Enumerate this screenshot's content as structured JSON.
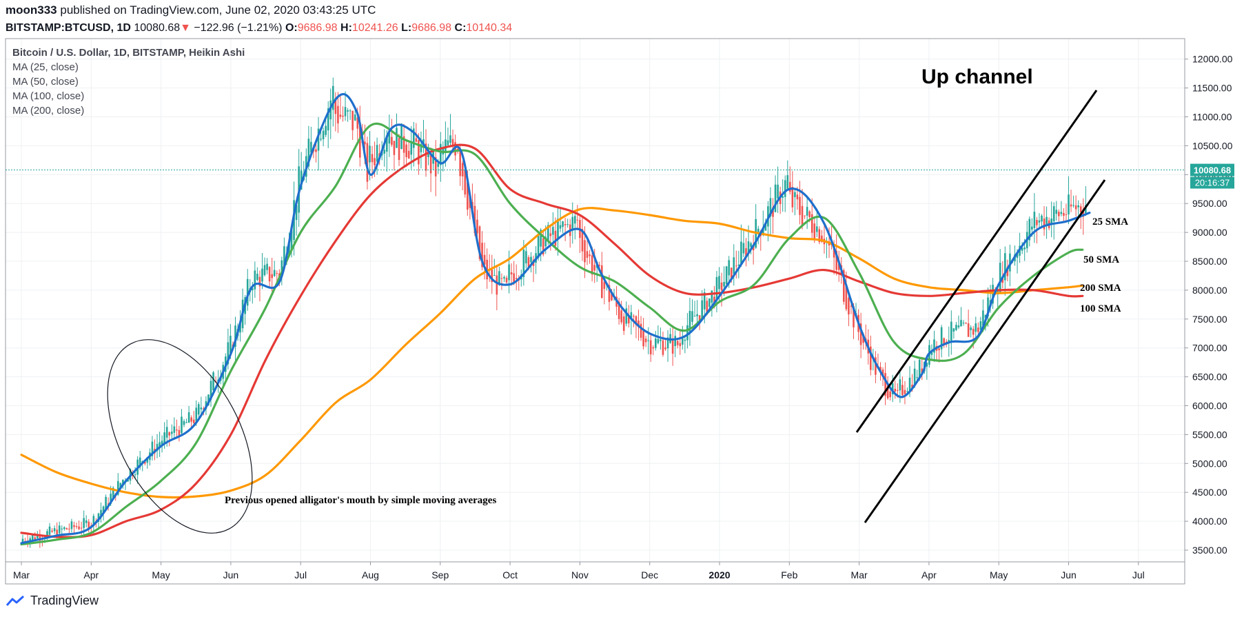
{
  "header": {
    "publisher": "moon333",
    "published_text": "published on TradingView.com, June 02, 2020 03:43:25 UTC",
    "symbol": "BITSTAMP:BTCUSD, 1D",
    "last": "10080.68",
    "change_arrow": "▼",
    "change": "−122.96 (−1.21%)",
    "o_label": "O:",
    "o_value": "9686.98",
    "h_label": "H:",
    "h_value": "10241.26",
    "l_label": "L:",
    "l_value": "9686.98",
    "c_label": "C:",
    "c_value": "10140.34"
  },
  "legend": {
    "title": "Bitcoin / U.S. Dollar, 1D, BITSTAMP, Heikin Ashi",
    "ma_lines": [
      "MA (25, close)",
      "MA (50, close)",
      "MA (100, close)",
      "MA (200, close)"
    ]
  },
  "price_badge": {
    "price": "10080.68",
    "countdown": "20:16:37"
  },
  "footer": {
    "brand": "TradingView"
  },
  "chart_data": {
    "type": "line",
    "title": "Bitcoin / U.S. Dollar, 1D, BITSTAMP, Heikin Ashi",
    "xlabel": "",
    "ylabel": "",
    "x_tick_labels": [
      "Mar",
      "Apr",
      "May",
      "Jun",
      "Jul",
      "Aug",
      "Sep",
      "Oct",
      "Nov",
      "Dec",
      "2020",
      "Feb",
      "Mar",
      "Apr",
      "May",
      "Jun",
      "Jul"
    ],
    "y_tick_labels": [
      "3500.00",
      "4000.00",
      "4500.00",
      "5000.00",
      "5500.00",
      "6000.00",
      "6500.00",
      "7000.00",
      "7500.00",
      "8000.00",
      "8500.00",
      "9000.00",
      "9500.00",
      "10000.00",
      "10500.00",
      "11000.00",
      "11500.00",
      "12000.00"
    ],
    "ylim": [
      3350,
      12600
    ],
    "grid": true,
    "candles_overlay": "heikin-ashi",
    "last_price": 10080.68,
    "series": [
      {
        "name": "MA (25, close)",
        "color": "#1e6fcc",
        "x": [
          0,
          0.5,
          1,
          1.5,
          2,
          2.5,
          3,
          3.3,
          3.7,
          4,
          4.5,
          4.8,
          5,
          5.3,
          5.6,
          6,
          6.3,
          6.6,
          7,
          7.5,
          8,
          8.3,
          8.6,
          9,
          9.5,
          10,
          10.5,
          11,
          11.5,
          12,
          12.3,
          12.6,
          12.9,
          13,
          13.3,
          13.7,
          14,
          14.5,
          15,
          15.3
        ],
        "y": [
          3620,
          3750,
          3900,
          4700,
          5300,
          5700,
          6900,
          8050,
          8150,
          9800,
          11300,
          11100,
          10000,
          10800,
          10750,
          10200,
          10400,
          8500,
          8100,
          8700,
          9050,
          8300,
          7700,
          7250,
          7200,
          7900,
          8800,
          9750,
          9150,
          7400,
          6600,
          6150,
          6550,
          6900,
          7100,
          7200,
          8100,
          9000,
          9200,
          9340
        ]
      },
      {
        "name": "MA (50, close)",
        "color": "#4caf50",
        "x": [
          0,
          0.5,
          1,
          1.5,
          2,
          2.5,
          3,
          3.5,
          4,
          4.5,
          5,
          5.5,
          6,
          6.5,
          7,
          7.5,
          8,
          8.5,
          9,
          9.5,
          10,
          10.5,
          11,
          11.5,
          12,
          12.5,
          13,
          13.5,
          14,
          14.5,
          15,
          15.2
        ],
        "y": [
          3600,
          3680,
          3800,
          4250,
          4700,
          5350,
          6600,
          7700,
          9000,
          9800,
          10850,
          10600,
          10400,
          10350,
          9500,
          8900,
          8400,
          8150,
          7700,
          7300,
          7800,
          8100,
          8900,
          9250,
          8300,
          7100,
          6800,
          6900,
          7700,
          8250,
          8650,
          8700
        ]
      },
      {
        "name": "MA (100, close)",
        "color": "#e53935",
        "x": [
          0,
          0.5,
          1,
          1.5,
          2,
          2.5,
          3,
          3.5,
          4,
          4.5,
          5,
          5.5,
          6,
          6.5,
          7,
          7.5,
          8,
          8.5,
          9,
          9.5,
          10,
          10.5,
          11,
          11.5,
          12,
          12.5,
          13,
          13.5,
          14,
          14.5,
          15,
          15.2
        ],
        "y": [
          3800,
          3730,
          3760,
          4000,
          4200,
          4650,
          5500,
          6800,
          7900,
          8850,
          9650,
          10150,
          10450,
          10450,
          9750,
          9500,
          9300,
          8800,
          8250,
          7950,
          7950,
          8050,
          8200,
          8350,
          8150,
          7950,
          7900,
          7950,
          8000,
          8000,
          7900,
          7900
        ]
      },
      {
        "name": "MA (200, close)",
        "color": "#ff9800",
        "x": [
          0,
          0.5,
          1,
          1.5,
          2,
          2.5,
          3,
          3.5,
          4,
          4.5,
          5,
          5.5,
          6,
          6.5,
          7,
          7.5,
          8,
          8.5,
          9,
          9.5,
          10,
          10.5,
          11,
          11.5,
          12,
          12.5,
          13,
          13.5,
          14,
          14.5,
          15,
          15.2
        ],
        "y": [
          5150,
          4850,
          4650,
          4500,
          4420,
          4430,
          4530,
          4800,
          5400,
          6050,
          6450,
          7050,
          7600,
          8200,
          8550,
          9050,
          9400,
          9380,
          9300,
          9200,
          9150,
          9000,
          8900,
          8850,
          8550,
          8200,
          8050,
          8000,
          7950,
          8000,
          8050,
          8080
        ]
      }
    ],
    "annotations": [
      "Up channel",
      "25 SMA",
      "50 SMA",
      "200 SMA",
      "100 SMA",
      "Previous opened alligator's mouth by simple moving averages"
    ]
  }
}
